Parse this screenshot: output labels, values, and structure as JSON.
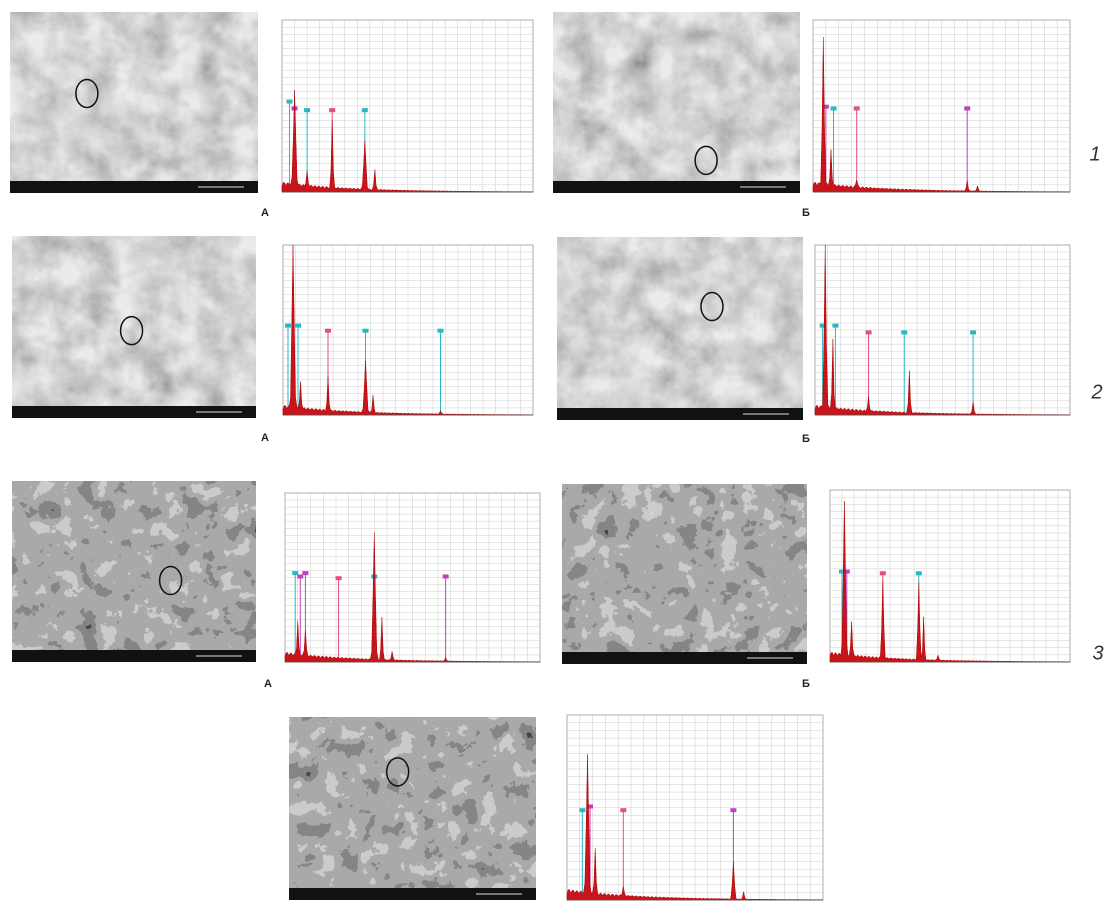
{
  "rows": [
    {
      "number": "1",
      "panels": [
        {
          "label": "А"
        },
        {
          "label": "Б"
        }
      ]
    },
    {
      "number": "2",
      "panels": [
        {
          "label": "А"
        },
        {
          "label": "Б"
        }
      ]
    },
    {
      "number": "3",
      "panels": [
        {
          "label": "А"
        },
        {
          "label": "Б"
        }
      ]
    }
  ]
}
